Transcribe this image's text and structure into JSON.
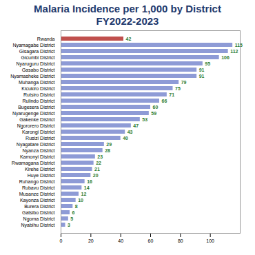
{
  "chart_data": {
    "type": "bar",
    "orientation": "horizontal",
    "title": "Malaria Incidence per 1,000 by District",
    "subtitle": "FY2022-2023",
    "categories": [
      "Rwanda",
      "Nyamagabe District",
      "Gisagara District",
      "Gicumbi District",
      "Nyaruguru District",
      "Gasabo District",
      "Nyamasheke District",
      "Muhanga District",
      "Kicukiro District",
      "Rutsiro District",
      "Rulindo District",
      "Bugesera District",
      "Nyarugenge District",
      "Gakenke District",
      "Ngororero District",
      "Karongi District",
      "Rusizi District",
      "Nyagatare District",
      "Nyanza District",
      "Kamonyi District",
      "Rwamagana District",
      "Kirehe District",
      "Huye District",
      "Ruhango District",
      "Rubavu District",
      "Musanze District",
      "Kayonza District",
      "Burera District",
      "Gatsibo District",
      "Ngoma District",
      "Nyabihu District"
    ],
    "values": [
      42,
      115,
      112,
      106,
      95,
      91,
      91,
      79,
      75,
      71,
      66,
      60,
      59,
      53,
      47,
      43,
      40,
      29,
      28,
      23,
      22,
      21,
      20,
      16,
      14,
      12,
      10,
      8,
      6,
      5,
      3
    ],
    "colors": [
      "#c0504d",
      "#8e9bd6",
      "#8e9bd6",
      "#8e9bd6",
      "#8e9bd6",
      "#8e9bd6",
      "#8e9bd6",
      "#8e9bd6",
      "#8e9bd6",
      "#8e9bd6",
      "#8e9bd6",
      "#8e9bd6",
      "#8e9bd6",
      "#8e9bd6",
      "#8e9bd6",
      "#8e9bd6",
      "#8e9bd6",
      "#8e9bd6",
      "#8e9bd6",
      "#8e9bd6",
      "#8e9bd6",
      "#8e9bd6",
      "#8e9bd6",
      "#8e9bd6",
      "#8e9bd6",
      "#8e9bd6",
      "#8e9bd6",
      "#8e9bd6",
      "#8e9bd6",
      "#8e9bd6",
      "#8e9bd6"
    ],
    "xlim": [
      0,
      120
    ],
    "xticks": [
      0,
      20,
      40,
      60,
      80,
      100
    ],
    "grid": false,
    "data_labels": true
  }
}
